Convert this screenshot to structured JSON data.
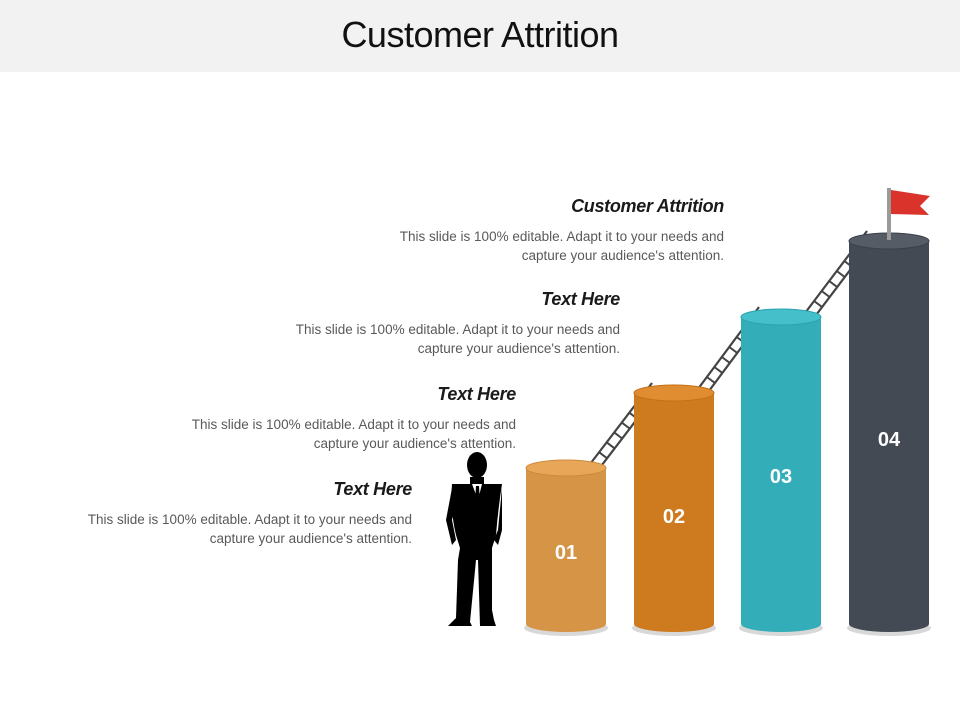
{
  "slide": {
    "title": "Customer Attrition"
  },
  "steps": [
    {
      "number": "01",
      "heading": "Text Here",
      "description_line1": "This slide is 100% editable. Adapt it to your needs and",
      "description_line2": "capture your audience's attention.",
      "color": "#D69446"
    },
    {
      "number": "02",
      "heading": "Text Here",
      "description_line1": "This slide is 100% editable. Adapt it to your needs and",
      "description_line2": "capture your audience's attention.",
      "color": "#CE7A1E"
    },
    {
      "number": "03",
      "heading": "Text Here",
      "description_line1": "This slide is 100% editable. Adapt it to your needs and",
      "description_line2": "capture your audience's attention.",
      "color": "#33AEB8"
    },
    {
      "number": "04",
      "heading": "Customer Attrition",
      "description_line1": "This slide is 100% editable. Adapt it to your needs and",
      "description_line2": "capture your audience's attention.",
      "color": "#434A54"
    }
  ],
  "icons": {
    "person": "businessman-silhouette-icon",
    "flag": "flag-icon",
    "ladder": "ladder-icon"
  },
  "colors": {
    "title_bar": "#F2F2F2",
    "flag": "#D9332B",
    "ladder": "#444444"
  }
}
